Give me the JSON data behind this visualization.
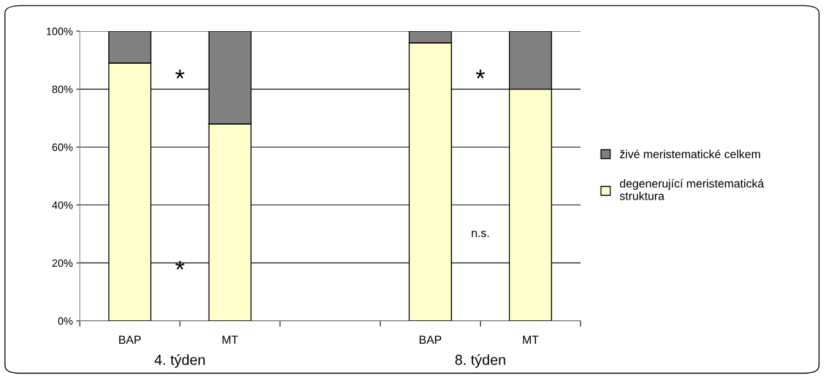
{
  "chart_data": {
    "type": "bar",
    "stacked": true,
    "categories": [
      "BAP",
      "MT",
      null,
      "BAP",
      "MT"
    ],
    "series": [
      {
        "name": "degenerující meristematická\nstruktura",
        "color": "#ffffcc",
        "values": [
          89,
          68,
          null,
          96,
          80
        ]
      },
      {
        "name": "živé meristematické celkem",
        "color": "#808080",
        "values": [
          11,
          32,
          null,
          4,
          20
        ]
      }
    ],
    "ylim": [
      0,
      100
    ],
    "yticks": [
      {
        "value": 0,
        "label": "0%"
      },
      {
        "value": 20,
        "label": "20%"
      },
      {
        "value": 40,
        "label": "40%"
      },
      {
        "value": 60,
        "label": "60%"
      },
      {
        "value": 80,
        "label": "80%"
      },
      {
        "value": 100,
        "label": "100%"
      }
    ],
    "grid": "y",
    "legend": "right",
    "annotations": [
      "4. týden",
      "8. týden",
      "*",
      "*",
      "*",
      "n.s."
    ]
  }
}
